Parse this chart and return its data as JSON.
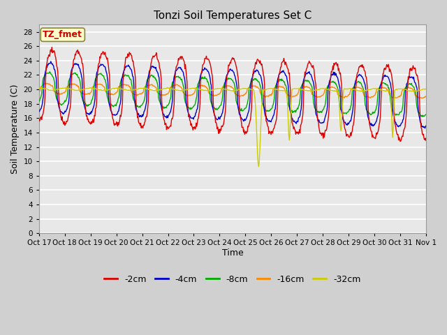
{
  "title": "Tonzi Soil Temperatures Set C",
  "xlabel": "Time",
  "ylabel": "Soil Temperature (C)",
  "ylim": [
    0,
    29
  ],
  "yticks": [
    0,
    2,
    4,
    6,
    8,
    10,
    12,
    14,
    16,
    18,
    20,
    22,
    24,
    26,
    28
  ],
  "xtick_labels": [
    "Oct 17",
    "Oct 18",
    "Oct 19",
    "Oct 20",
    "Oct 21",
    "Oct 22",
    "Oct 23",
    "Oct 24",
    "Oct 25",
    "Oct 26",
    "Oct 27",
    "Oct 28",
    "Oct 29",
    "Oct 30",
    "Oct 31",
    "Nov 1"
  ],
  "legend_labels": [
    "-2cm",
    "-4cm",
    "-8cm",
    "-16cm",
    "-32cm"
  ],
  "legend_colors": [
    "#dd0000",
    "#0000cc",
    "#00aa00",
    "#ff8800",
    "#cccc00"
  ],
  "annotation_text": "TZ_fmet",
  "annotation_color": "#cc0000",
  "annotation_bg": "#ffffcc",
  "series_colors": [
    "#dd0000",
    "#0000cc",
    "#00aa00",
    "#ff8800",
    "#cccc00"
  ],
  "n_days": 15,
  "points_per_day": 48,
  "fig_width": 6.4,
  "fig_height": 4.8,
  "dpi": 100
}
